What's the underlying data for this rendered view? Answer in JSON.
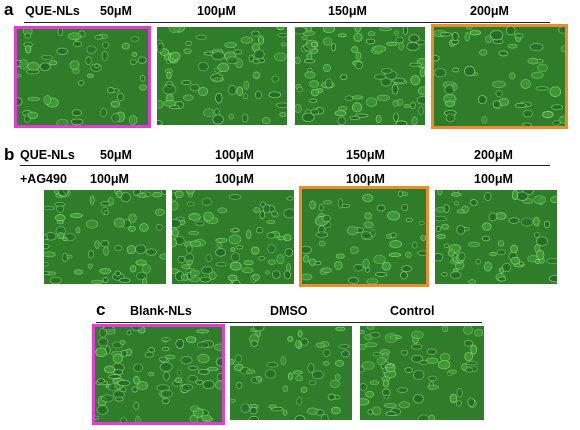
{
  "panel_a": {
    "letter": "a",
    "row_label": "QUE-NLs",
    "concentrations": [
      "50μM",
      "100μM",
      "150μM",
      "200μM"
    ],
    "highlights": [
      "magenta",
      "none",
      "none",
      "orange"
    ]
  },
  "panel_b": {
    "letter": "b",
    "row1_label": "QUE-NLs",
    "row1_concentrations": [
      "50μM",
      "100μM",
      "150μM",
      "200μM"
    ],
    "row2_label": "+AG490",
    "row2_concentrations": [
      "100μM",
      "100μM",
      "100μM",
      "100μM"
    ],
    "highlights": [
      "none",
      "none",
      "orange",
      "none"
    ]
  },
  "panel_c": {
    "letter": "c",
    "labels": [
      "Blank-NLs",
      "DMSO",
      "Control"
    ],
    "highlights": [
      "magenta",
      "none",
      "none"
    ]
  },
  "colors": {
    "magenta_frame": "#e43ad8",
    "orange_frame": "#f08a2a",
    "micrograph_base": "#2f7d2a",
    "cell_outline": "#8fe07a"
  }
}
